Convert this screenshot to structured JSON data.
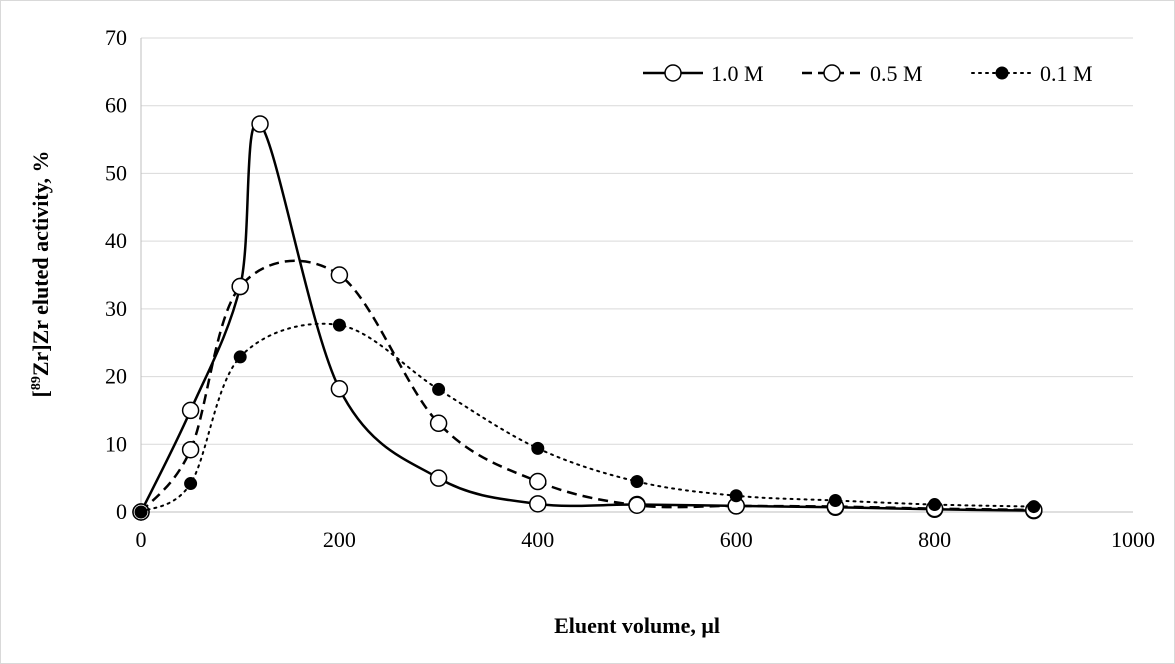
{
  "chart_data": {
    "type": "line",
    "title": "",
    "xlabel": "Eluent volume, μl",
    "ylabel_parts": [
      "[",
      "89",
      "Zr]Zr eluted activity, %"
    ],
    "xlim": [
      0,
      1000
    ],
    "ylim": [
      0,
      70
    ],
    "x_ticks": [
      0,
      200,
      400,
      600,
      800,
      1000
    ],
    "y_ticks": [
      0,
      10,
      20,
      30,
      40,
      50,
      60,
      70
    ],
    "grid": "horizontal",
    "legend_position": "top-right",
    "series": [
      {
        "name": "1.0 M",
        "style": "solid",
        "marker": "open-circle",
        "color": "#000000",
        "x": [
          0,
          50,
          100,
          120,
          200,
          300,
          400,
          500,
          600,
          700,
          800,
          900
        ],
        "y": [
          0,
          15,
          33.3,
          57.3,
          18.2,
          5,
          1.2,
          1.1,
          0.9,
          0.7,
          0.4,
          0.2
        ]
      },
      {
        "name": "0.5 M",
        "style": "dashed",
        "marker": "open-circle",
        "color": "#000000",
        "x": [
          0,
          50,
          100,
          200,
          300,
          400,
          500,
          600,
          700,
          800,
          900
        ],
        "y": [
          0,
          9.2,
          33.3,
          35,
          13.1,
          4.5,
          1,
          0.9,
          0.8,
          0.5,
          0.3
        ]
      },
      {
        "name": "0.1 M",
        "style": "dotted",
        "marker": "filled-circle",
        "color": "#000000",
        "x": [
          0,
          50,
          100,
          200,
          300,
          400,
          500,
          600,
          700,
          800,
          900
        ],
        "y": [
          0,
          4.2,
          22.9,
          27.6,
          18.1,
          9.4,
          4.5,
          2.4,
          1.7,
          1.1,
          0.8
        ]
      }
    ]
  }
}
